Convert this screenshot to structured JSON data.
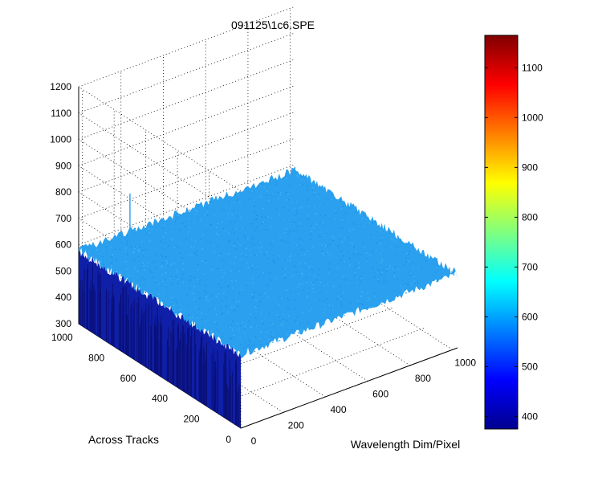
{
  "chart_data": {
    "type": "surface",
    "title": "091125\\1c6.SPE",
    "xlabel": "Wavelength Dim/Pixel",
    "ylabel": "Across Tracks",
    "zlabel": "",
    "x_range": [
      0,
      1024
    ],
    "y_range": [
      0,
      1024
    ],
    "z_range": [
      300,
      1200
    ],
    "x_ticks": [
      "0",
      "200",
      "400",
      "600",
      "800",
      "1000"
    ],
    "y_ticks": [
      "0",
      "200",
      "400",
      "600",
      "800",
      "1000"
    ],
    "z_ticks": [
      "300",
      "400",
      "500",
      "600",
      "700",
      "800",
      "900",
      "1000",
      "1100",
      "1200"
    ],
    "surface_level": 580,
    "surface_noise": 20,
    "spike": {
      "x": 0,
      "y": 700,
      "z": 920
    },
    "colorbar": {
      "range": [
        375,
        1165
      ],
      "ticks": [
        "400",
        "500",
        "600",
        "700",
        "800",
        "900",
        "1000",
        "1100"
      ],
      "colormap": "jet"
    },
    "grid": true,
    "colors": {
      "surface_top": "#2aa0ee",
      "surface_side": "#0f1fa8",
      "surface_side_dark": "#0a1078"
    }
  }
}
